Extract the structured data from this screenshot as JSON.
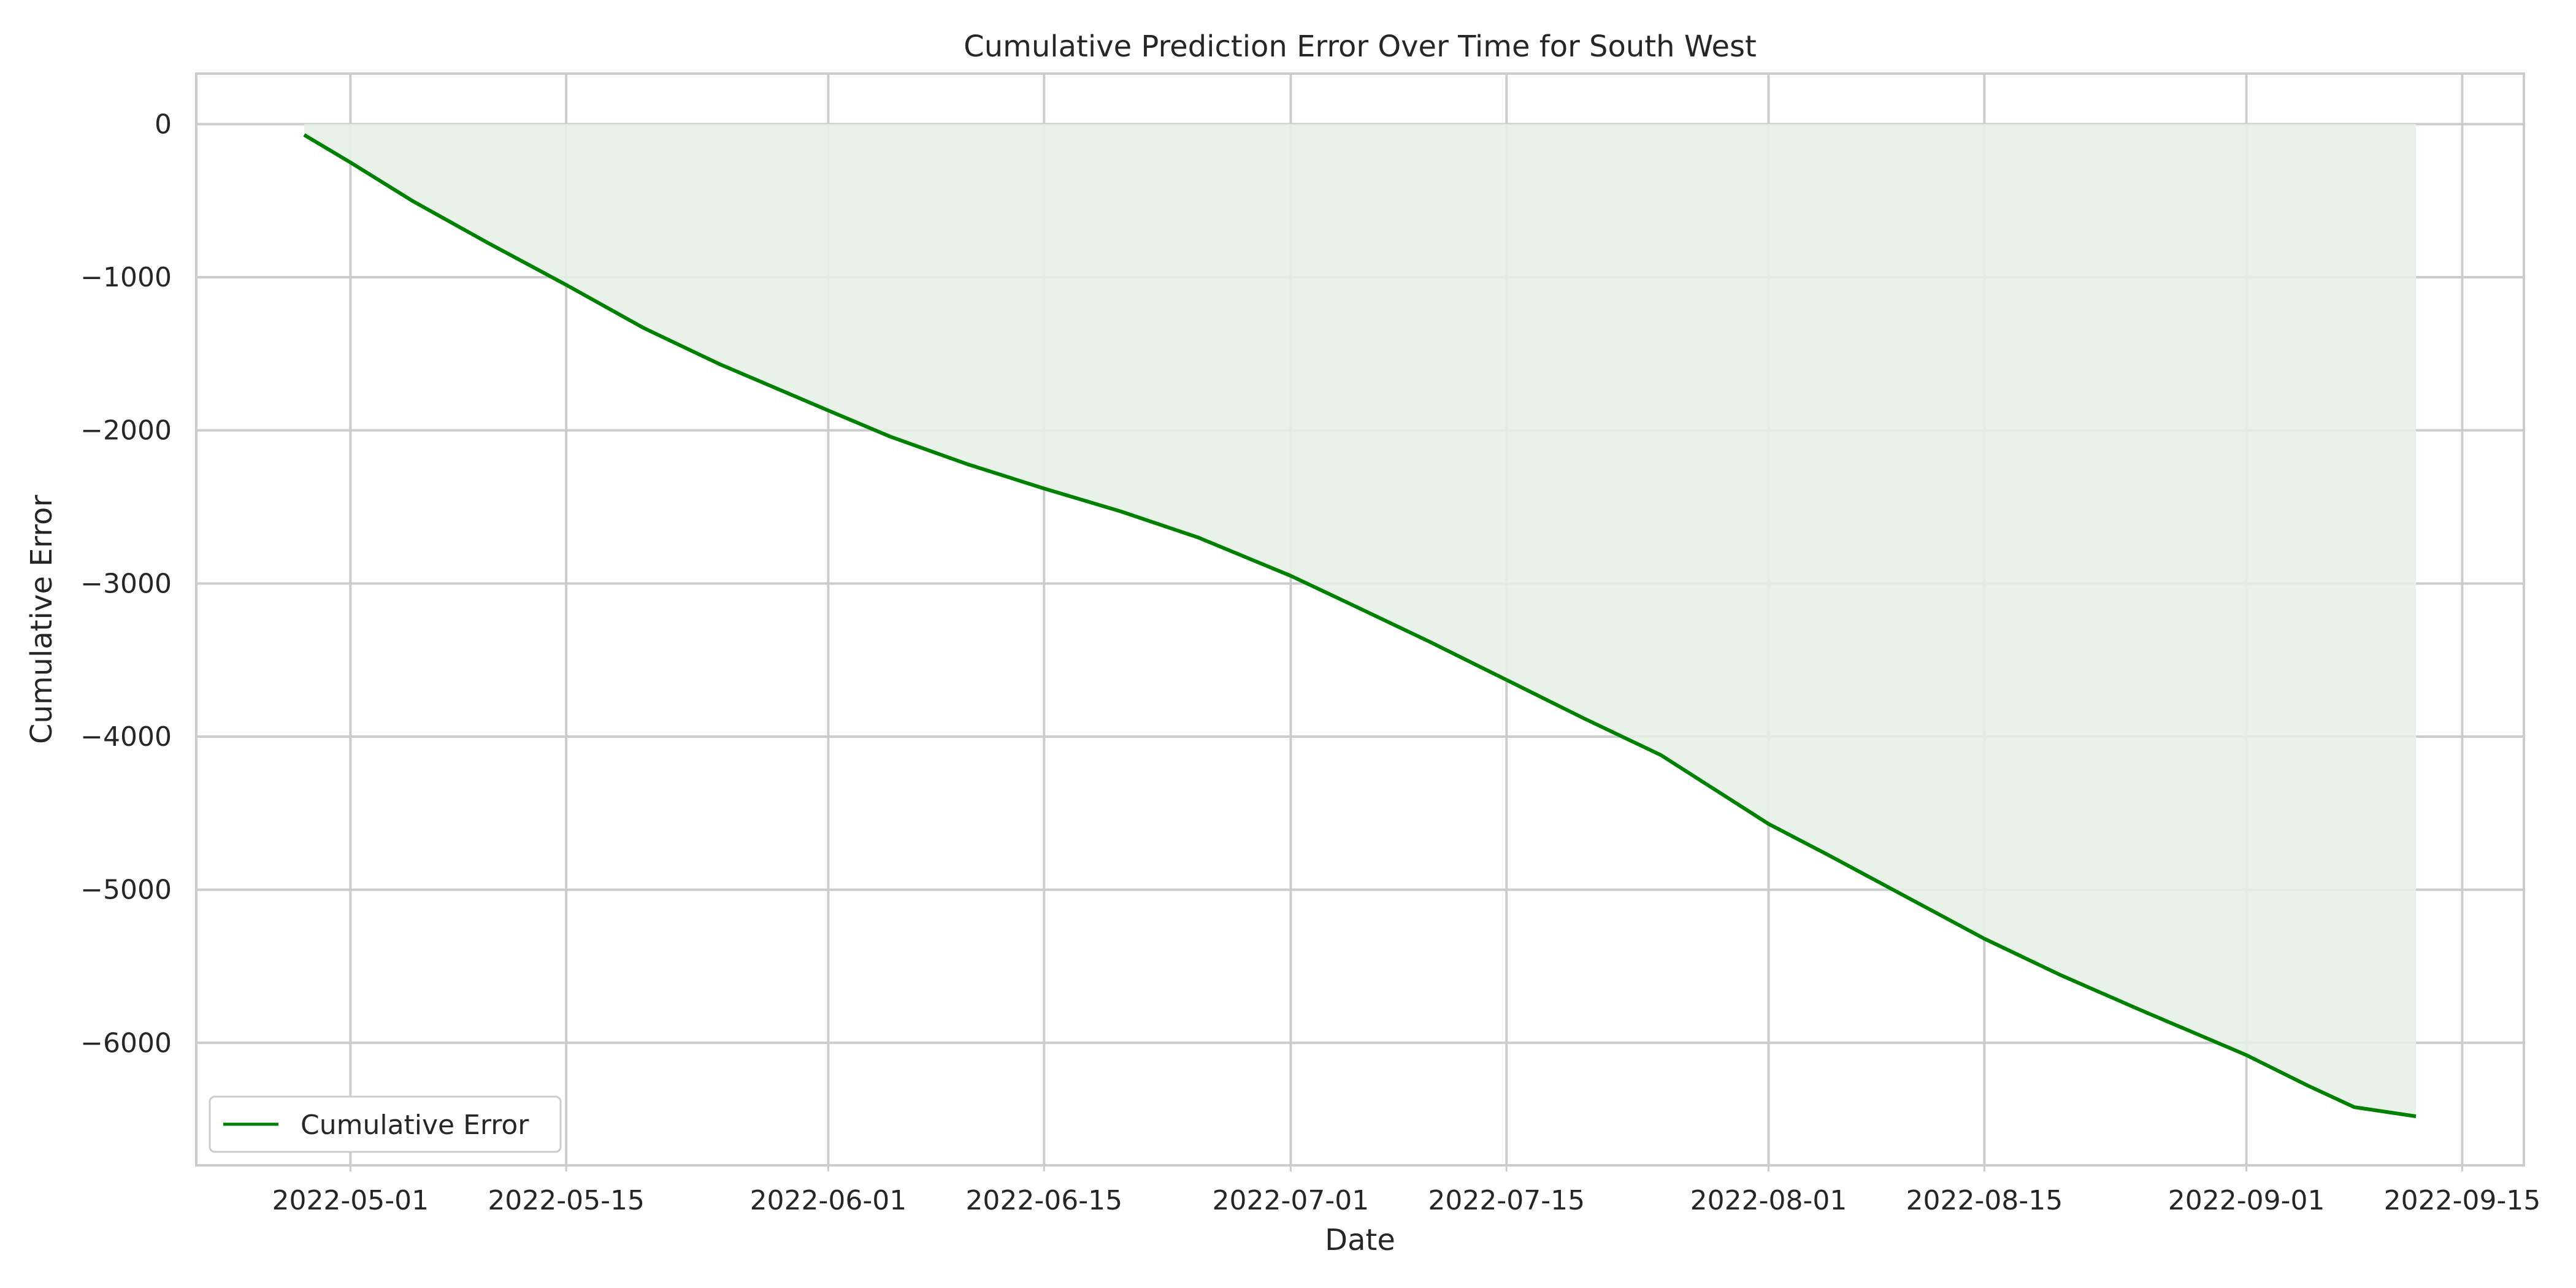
{
  "chart_data": {
    "type": "area",
    "title": "Cumulative Prediction Error Over Time for South West",
    "xlabel": "Date",
    "ylabel": "Cumulative Error",
    "x_range": [
      "2022-04-21",
      "2022-09-19"
    ],
    "ylim": [
      -6800,
      330
    ],
    "x_ticks": [
      "2022-05-01",
      "2022-05-15",
      "2022-06-01",
      "2022-06-15",
      "2022-07-01",
      "2022-07-15",
      "2022-08-01",
      "2022-08-15",
      "2022-09-01",
      "2022-09-15"
    ],
    "y_ticks": [
      0,
      -1000,
      -2000,
      -3000,
      -4000,
      -5000,
      -6000
    ],
    "y_tick_labels": [
      "0",
      "−1000",
      "−2000",
      "−3000",
      "−4000",
      "−5000",
      "−6000"
    ],
    "grid": true,
    "legend_position": "bottom-left",
    "fill_baseline": 0,
    "line_color": "#008000",
    "fill_color": "#e5f1e5",
    "grid_color": "#cccccc",
    "series": [
      {
        "name": "Cumulative Error",
        "x": [
          "2022-04-28",
          "2022-05-01",
          "2022-05-05",
          "2022-05-10",
          "2022-05-15",
          "2022-05-20",
          "2022-05-25",
          "2022-06-01",
          "2022-06-05",
          "2022-06-10",
          "2022-06-15",
          "2022-06-20",
          "2022-06-25",
          "2022-07-01",
          "2022-07-05",
          "2022-07-10",
          "2022-07-15",
          "2022-07-20",
          "2022-07-25",
          "2022-08-01",
          "2022-08-05",
          "2022-08-10",
          "2022-08-15",
          "2022-08-20",
          "2022-08-25",
          "2022-09-01",
          "2022-09-05",
          "2022-09-08",
          "2022-09-12"
        ],
        "y": [
          -70,
          -250,
          -500,
          -780,
          -1050,
          -1330,
          -1570,
          -1870,
          -2040,
          -2220,
          -2380,
          -2530,
          -2700,
          -2950,
          -3140,
          -3380,
          -3630,
          -3880,
          -4120,
          -4570,
          -4780,
          -5050,
          -5320,
          -5560,
          -5780,
          -6080,
          -6280,
          -6420,
          -6480
        ]
      }
    ]
  }
}
